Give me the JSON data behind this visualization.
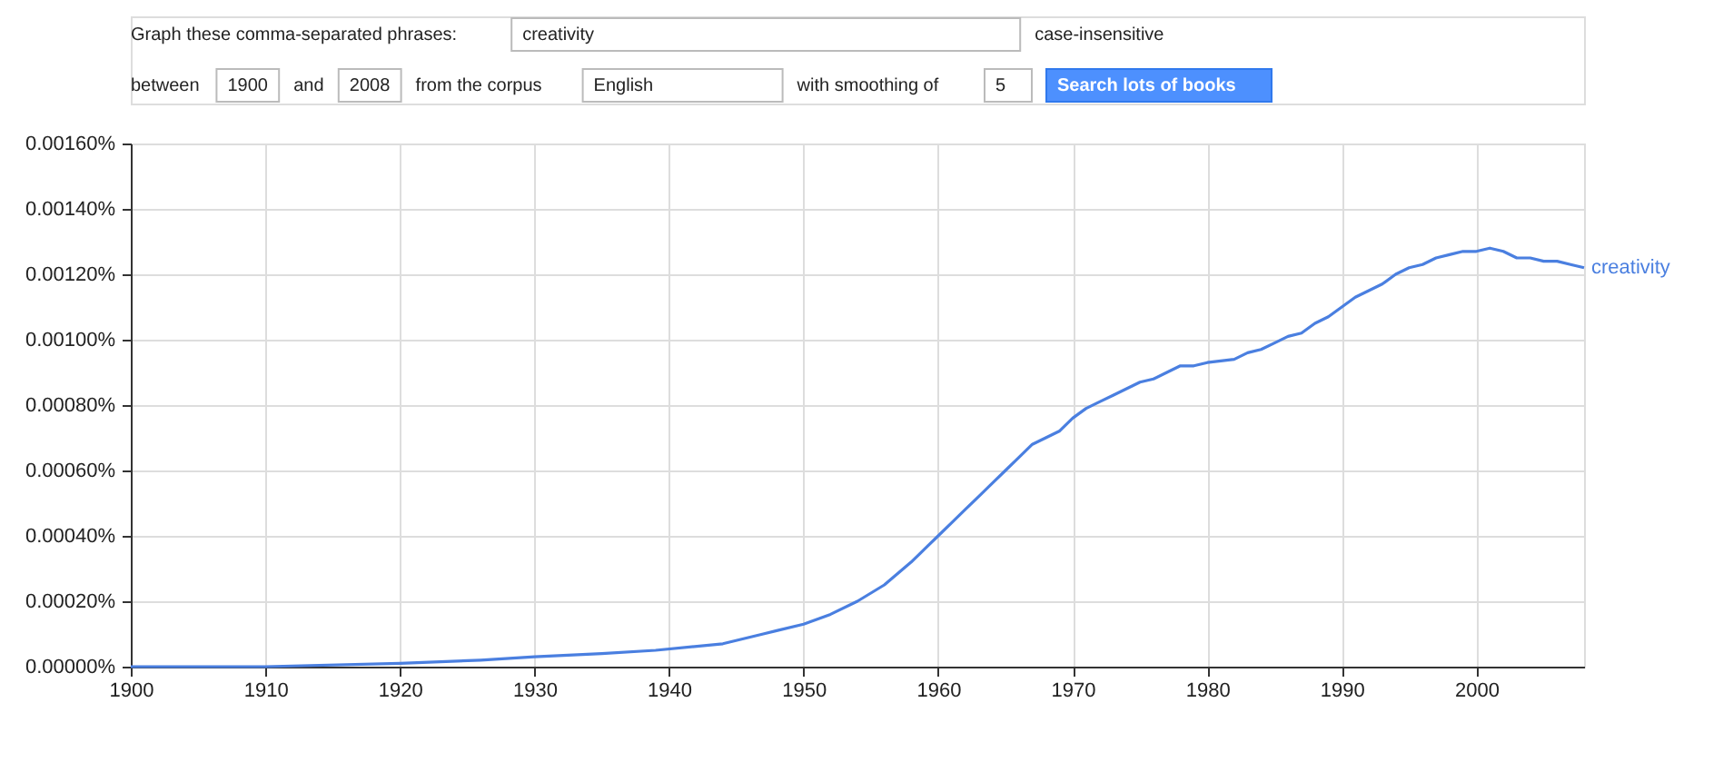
{
  "chart_data": {
    "type": "line",
    "annotations": [
      "Graph these comma-separated phrases:",
      "creativity",
      "case-insensitive",
      "between",
      "1900",
      "and",
      "2008",
      "from the corpus",
      "English",
      "with smoothing of",
      "5",
      "Search lots of books"
    ],
    "x": [
      1900,
      1910,
      1920,
      1926,
      1930,
      1935,
      1939,
      1944,
      1947,
      1948,
      1950,
      1952,
      1954,
      1956,
      1958,
      1959,
      1960,
      1961,
      1962,
      1963,
      1964,
      1965,
      1966,
      1967,
      1968,
      1969,
      1970,
      1971,
      1972,
      1973,
      1974,
      1975,
      1976,
      1977,
      1978,
      1979,
      1980,
      1982,
      1983,
      1984,
      1985,
      1986,
      1987,
      1988,
      1989,
      1990,
      1991,
      1992,
      1993,
      1994,
      1995,
      1996,
      1997,
      1998,
      1999,
      2000,
      2001,
      2002,
      2003,
      2004,
      2005,
      2006,
      2007,
      2008
    ],
    "series": [
      {
        "name": "creativity",
        "color": "#4a7fe0",
        "values": [
          0.0,
          0.0,
          1e-05,
          2e-05,
          3e-05,
          4e-05,
          5e-05,
          7e-05,
          0.0001,
          0.00011,
          0.00013,
          0.00016,
          0.0002,
          0.00025,
          0.00032,
          0.00036,
          0.0004,
          0.00044,
          0.00048,
          0.00052,
          0.00056,
          0.0006,
          0.00064,
          0.00068,
          0.0007,
          0.00072,
          0.00076,
          0.00079,
          0.00081,
          0.00083,
          0.00085,
          0.00087,
          0.00088,
          0.0009,
          0.00092,
          0.00092,
          0.00093,
          0.00094,
          0.00096,
          0.00097,
          0.00099,
          0.00101,
          0.00102,
          0.00105,
          0.00107,
          0.0011,
          0.00113,
          0.00115,
          0.00117,
          0.0012,
          0.00122,
          0.00123,
          0.00125,
          0.00126,
          0.00127,
          0.00127,
          0.00128,
          0.00127,
          0.00125,
          0.00125,
          0.00124,
          0.00124,
          0.00123,
          0.00122
        ]
      }
    ],
    "xlim": [
      1900,
      2008
    ],
    "xticks": [
      1900,
      1910,
      1920,
      1930,
      1940,
      1950,
      1960,
      1970,
      1980,
      1990,
      2000
    ],
    "ylim": [
      0,
      0.0016
    ],
    "yticks": [
      {
        "value": 0,
        "label": "0.00000%"
      },
      {
        "value": 0.0002,
        "label": "0.00020%"
      },
      {
        "value": 0.0004,
        "label": "0.00040%"
      },
      {
        "value": 0.0006,
        "label": "0.00060%"
      },
      {
        "value": 0.0008,
        "label": "0.00080%"
      },
      {
        "value": 0.001,
        "label": "0.00100%"
      },
      {
        "value": 0.0012,
        "label": "0.00120%"
      },
      {
        "value": 0.0014,
        "label": "0.00140%"
      },
      {
        "value": 0.0016,
        "label": "0.00160%"
      }
    ],
    "grid": true,
    "legend": false,
    "marker": "none",
    "line_style": "solid"
  }
}
